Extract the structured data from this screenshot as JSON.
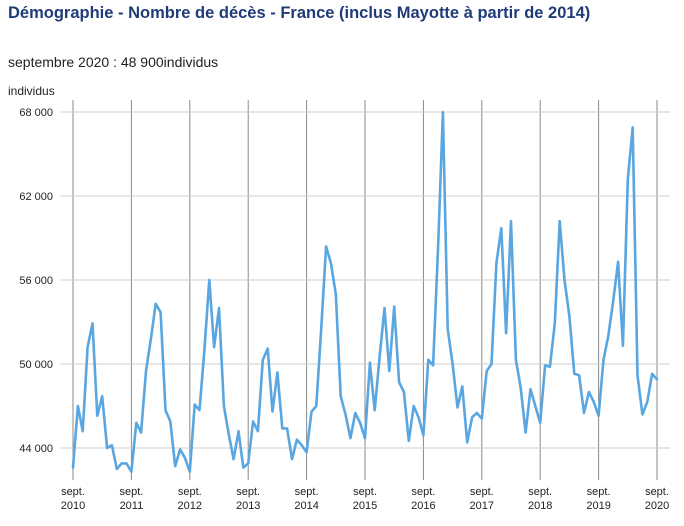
{
  "title": "Démographie - Nombre de décès - France (inclus Mayotte à partir de 2014)",
  "subtitle": "septembre 2020 : 48 900individus",
  "chart_data": {
    "type": "line",
    "ylabel": "individus",
    "ylim": [
      43000,
      68500
    ],
    "y_ticks": [
      44000,
      50000,
      56000,
      62000,
      68000
    ],
    "y_tick_labels": [
      "44 000",
      "50 000",
      "56 000",
      "62 000",
      "68 000"
    ],
    "x_ticks": [
      {
        "x": "2010-09",
        "line1": "sept.",
        "line2": "2010"
      },
      {
        "x": "2011-09",
        "line1": "sept.",
        "line2": "2011"
      },
      {
        "x": "2012-09",
        "line1": "sept.",
        "line2": "2012"
      },
      {
        "x": "2013-09",
        "line1": "sept.",
        "line2": "2013"
      },
      {
        "x": "2014-09",
        "line1": "sept.",
        "line2": "2014"
      },
      {
        "x": "2015-09",
        "line1": "sept.",
        "line2": "2015"
      },
      {
        "x": "2016-09",
        "line1": "sept.",
        "line2": "2016"
      },
      {
        "x": "2017-09",
        "line1": "sept.",
        "line2": "2017"
      },
      {
        "x": "2018-09",
        "line1": "sept.",
        "line2": "2018"
      },
      {
        "x": "2019-09",
        "line1": "sept.",
        "line2": "2019"
      },
      {
        "x": "2020-09",
        "line1": "sept.",
        "line2": "2020"
      }
    ],
    "grid": true,
    "line_color": "#5aa6e0",
    "x": [
      "2010-09",
      "2010-10",
      "2010-11",
      "2010-12",
      "2011-01",
      "2011-02",
      "2011-03",
      "2011-04",
      "2011-05",
      "2011-06",
      "2011-07",
      "2011-08",
      "2011-09",
      "2011-10",
      "2011-11",
      "2011-12",
      "2012-01",
      "2012-02",
      "2012-03",
      "2012-04",
      "2012-05",
      "2012-06",
      "2012-07",
      "2012-08",
      "2012-09",
      "2012-10",
      "2012-11",
      "2012-12",
      "2013-01",
      "2013-02",
      "2013-03",
      "2013-04",
      "2013-05",
      "2013-06",
      "2013-07",
      "2013-08",
      "2013-09",
      "2013-10",
      "2013-11",
      "2013-12",
      "2014-01",
      "2014-02",
      "2014-03",
      "2014-04",
      "2014-05",
      "2014-06",
      "2014-07",
      "2014-08",
      "2014-09",
      "2014-10",
      "2014-11",
      "2014-12",
      "2015-01",
      "2015-02",
      "2015-03",
      "2015-04",
      "2015-05",
      "2015-06",
      "2015-07",
      "2015-08",
      "2015-09",
      "2015-10",
      "2015-11",
      "2015-12",
      "2016-01",
      "2016-02",
      "2016-03",
      "2016-04",
      "2016-05",
      "2016-06",
      "2016-07",
      "2016-08",
      "2016-09",
      "2016-10",
      "2016-11",
      "2016-12",
      "2017-01",
      "2017-02",
      "2017-03",
      "2017-04",
      "2017-05",
      "2017-06",
      "2017-07",
      "2017-08",
      "2017-09",
      "2017-10",
      "2017-11",
      "2017-12",
      "2018-01",
      "2018-02",
      "2018-03",
      "2018-04",
      "2018-05",
      "2018-06",
      "2018-07",
      "2018-08",
      "2018-09",
      "2018-10",
      "2018-11",
      "2018-12",
      "2019-01",
      "2019-02",
      "2019-03",
      "2019-04",
      "2019-05",
      "2019-06",
      "2019-07",
      "2019-08",
      "2019-09",
      "2019-10",
      "2019-11",
      "2019-12",
      "2020-01",
      "2020-02",
      "2020-03",
      "2020-04",
      "2020-05",
      "2020-06",
      "2020-07",
      "2020-08",
      "2020-09"
    ],
    "values": [
      42600,
      47000,
      45200,
      51200,
      52900,
      46300,
      47700,
      44000,
      44200,
      42500,
      42900,
      42900,
      42300,
      45800,
      45100,
      49500,
      51800,
      54300,
      53700,
      46700,
      45900,
      42700,
      43900,
      43300,
      42300,
      47100,
      46700,
      51000,
      56000,
      51200,
      54000,
      47000,
      45000,
      43200,
      45200,
      42600,
      42900,
      45900,
      45200,
      50300,
      51100,
      46600,
      49400,
      45400,
      45400,
      43200,
      44600,
      44200,
      43700,
      46600,
      47000,
      52500,
      58400,
      57200,
      55000,
      47700,
      46400,
      44700,
      46500,
      45800,
      44700,
      50100,
      46700,
      50500,
      54000,
      49500,
      54100,
      48700,
      48000,
      44500,
      47000,
      46200,
      44900,
      50300,
      49900,
      58200,
      68000,
      52500,
      50000,
      46900,
      48400,
      44400,
      46200,
      46500,
      46100,
      49500,
      50000,
      57200,
      59700,
      52200,
      60200,
      50300,
      48300,
      45100,
      48200,
      47000,
      45800,
      49900,
      49800,
      52900,
      60200,
      56000,
      53400,
      49300,
      49200,
      46500,
      48000,
      47300,
      46300,
      50300,
      52000,
      54500,
      57300,
      51300,
      63200,
      66900,
      49200,
      46400,
      47300,
      49300,
      48900
    ]
  }
}
